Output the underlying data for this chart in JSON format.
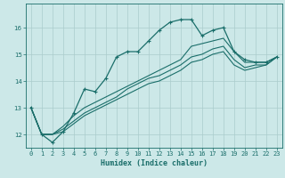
{
  "xlabel": "Humidex (Indice chaleur)",
  "bg_color": "#cce8e8",
  "grid_color": "#aacccc",
  "line_color": "#1a6e6a",
  "xlim": [
    -0.5,
    23.5
  ],
  "ylim": [
    11.5,
    16.9
  ],
  "yticks": [
    12,
    13,
    14,
    15,
    16
  ],
  "xticks": [
    0,
    1,
    2,
    3,
    4,
    5,
    6,
    7,
    8,
    9,
    10,
    11,
    12,
    13,
    14,
    15,
    16,
    17,
    18,
    19,
    20,
    21,
    22,
    23
  ],
  "series": [
    [
      13.0,
      12.0,
      11.7,
      12.1,
      12.8,
      13.7,
      13.6,
      14.1,
      14.9,
      15.1,
      15.1,
      15.5,
      15.9,
      16.2,
      16.3,
      16.3,
      15.7,
      15.9,
      16.0,
      15.1,
      14.8,
      14.7,
      14.7,
      14.9
    ],
    [
      13.0,
      12.0,
      12.0,
      12.3,
      12.7,
      13.0,
      13.2,
      13.4,
      13.6,
      13.8,
      14.0,
      14.2,
      14.4,
      14.6,
      14.8,
      15.3,
      15.4,
      15.5,
      15.6,
      15.1,
      14.7,
      14.7,
      14.7,
      14.9
    ],
    [
      13.0,
      12.0,
      12.0,
      12.2,
      12.5,
      12.8,
      13.0,
      13.2,
      13.4,
      13.7,
      13.9,
      14.1,
      14.2,
      14.4,
      14.6,
      14.9,
      15.0,
      15.2,
      15.3,
      14.8,
      14.5,
      14.6,
      14.6,
      14.9
    ],
    [
      13.0,
      12.0,
      12.0,
      12.1,
      12.4,
      12.7,
      12.9,
      13.1,
      13.3,
      13.5,
      13.7,
      13.9,
      14.0,
      14.2,
      14.4,
      14.7,
      14.8,
      15.0,
      15.1,
      14.6,
      14.4,
      14.5,
      14.6,
      14.9
    ]
  ],
  "has_markers": [
    true,
    false,
    false,
    false
  ]
}
